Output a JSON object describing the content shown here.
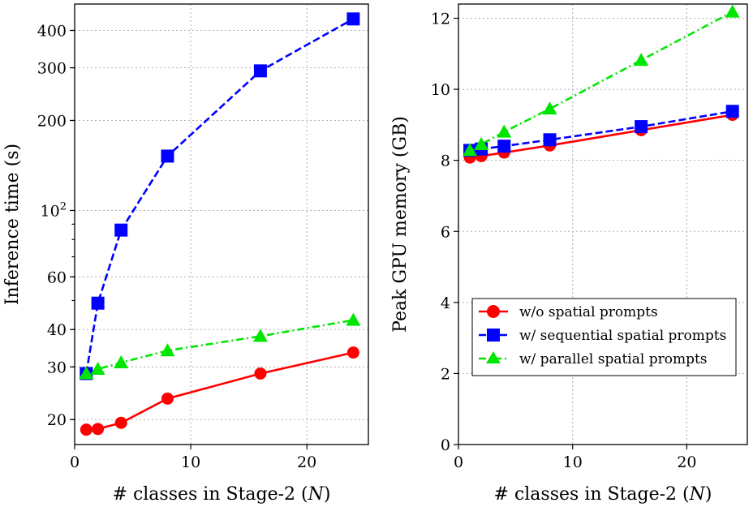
{
  "chart_data": [
    {
      "type": "line",
      "ylabel": "Inference time (s)",
      "xlabel": "# classes in Stage-2 (N)",
      "xlim": [
        0,
        25.3
      ],
      "ylim": [
        16.5,
        490
      ],
      "yscale": "log",
      "grid": true,
      "xticks": [
        {
          "value": 0,
          "label": "0"
        },
        {
          "value": 10,
          "label": "10"
        },
        {
          "value": 20,
          "label": "20"
        }
      ],
      "yticks": [
        {
          "value": 20,
          "label": "20"
        },
        {
          "value": 30,
          "label": "30"
        },
        {
          "value": 40,
          "label": "40"
        },
        {
          "value": 60,
          "label": "60"
        },
        {
          "value": 100,
          "label": "10²"
        },
        {
          "value": 200,
          "label": "200"
        },
        {
          "value": 300,
          "label": "300"
        },
        {
          "value": 400,
          "label": "400"
        }
      ],
      "x": [
        1,
        2,
        4,
        8,
        16,
        24
      ],
      "series": [
        {
          "name": "w/o spatial prompts",
          "color": "#ff0000",
          "marker": "circle",
          "linestyle": "solid",
          "values": [
            18.5,
            18.6,
            19.5,
            23.5,
            28.5,
            33.5
          ]
        },
        {
          "name": "w/ sequential spatial prompts",
          "color": "#0000ff",
          "marker": "square",
          "linestyle": "dashed",
          "values": [
            28.5,
            49,
            86,
            152,
            293,
            437
          ]
        },
        {
          "name": "w/ parallel spatial prompts",
          "color": "#00e600",
          "marker": "triangle",
          "linestyle": "dashdot",
          "values": [
            28.5,
            29.5,
            31,
            34,
            38,
            43
          ]
        }
      ]
    },
    {
      "type": "line",
      "ylabel": "Peak GPU memory (GB)",
      "xlabel": "# classes in Stage-2 (N)",
      "xlim": [
        0,
        25.3
      ],
      "ylim": [
        0,
        12.4
      ],
      "yscale": "linear",
      "grid": true,
      "legend_position": "lower-right",
      "xticks": [
        {
          "value": 0,
          "label": "0"
        },
        {
          "value": 10,
          "label": "10"
        },
        {
          "value": 20,
          "label": "20"
        }
      ],
      "yticks": [
        {
          "value": 0,
          "label": "0"
        },
        {
          "value": 2,
          "label": "2"
        },
        {
          "value": 4,
          "label": "4"
        },
        {
          "value": 6,
          "label": "6"
        },
        {
          "value": 8,
          "label": "8"
        },
        {
          "value": 10,
          "label": "10"
        },
        {
          "value": 12,
          "label": "12"
        }
      ],
      "x": [
        1,
        2,
        4,
        8,
        16,
        24
      ],
      "series": [
        {
          "name": "w/o spatial prompts",
          "color": "#ff0000",
          "marker": "circle",
          "linestyle": "solid",
          "values": [
            8.08,
            8.12,
            8.22,
            8.42,
            8.85,
            9.28
          ]
        },
        {
          "name": "w/ sequential spatial prompts",
          "color": "#0000ff",
          "marker": "square",
          "linestyle": "dashed",
          "values": [
            8.28,
            8.32,
            8.4,
            8.58,
            8.95,
            9.38
          ]
        },
        {
          "name": "w/ parallel spatial prompts",
          "color": "#00e600",
          "marker": "triangle",
          "linestyle": "dashdot",
          "values": [
            8.28,
            8.45,
            8.8,
            9.45,
            10.82,
            12.18
          ]
        }
      ]
    }
  ],
  "legend": {
    "items": [
      "w/o spatial prompts",
      "w/ sequential spatial prompts",
      "w/ parallel spatial prompts"
    ]
  }
}
